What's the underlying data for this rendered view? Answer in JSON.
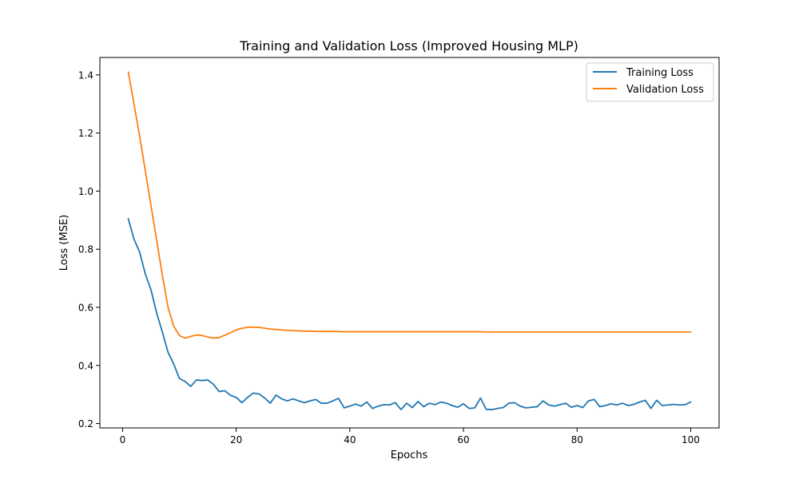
{
  "chart_data": {
    "type": "line",
    "title": "Training and Validation Loss (Improved Housing MLP)",
    "xlabel": "Epochs",
    "ylabel": "Loss (MSE)",
    "xlim": [
      -4,
      105
    ],
    "ylim": [
      0.185,
      1.46
    ],
    "xticks": [
      0,
      20,
      40,
      60,
      80,
      100
    ],
    "yticks": [
      0.2,
      0.4,
      0.6,
      0.8,
      1.0,
      1.2,
      1.4
    ],
    "ytick_labels": [
      "0.2",
      "0.4",
      "0.6",
      "0.8",
      "1.0",
      "1.2",
      "1.4"
    ],
    "grid": false,
    "legend": "top-right",
    "x": [
      1,
      2,
      3,
      4,
      5,
      6,
      7,
      8,
      9,
      10,
      11,
      12,
      13,
      14,
      15,
      16,
      17,
      18,
      19,
      20,
      21,
      22,
      23,
      24,
      25,
      26,
      27,
      28,
      29,
      30,
      31,
      32,
      33,
      34,
      35,
      36,
      37,
      38,
      39,
      40,
      41,
      42,
      43,
      44,
      45,
      46,
      47,
      48,
      49,
      50,
      51,
      52,
      53,
      54,
      55,
      56,
      57,
      58,
      59,
      60,
      61,
      62,
      63,
      64,
      65,
      66,
      67,
      68,
      69,
      70,
      71,
      72,
      73,
      74,
      75,
      76,
      77,
      78,
      79,
      80,
      81,
      82,
      83,
      84,
      85,
      86,
      87,
      88,
      89,
      90,
      91,
      92,
      93,
      94,
      95,
      96,
      97,
      98,
      99,
      100
    ],
    "series": [
      {
        "name": "Training Loss",
        "color": "#1f77b4",
        "values": [
          0.905,
          0.835,
          0.79,
          0.715,
          0.66,
          0.58,
          0.515,
          0.445,
          0.405,
          0.355,
          0.345,
          0.328,
          0.35,
          0.348,
          0.35,
          0.335,
          0.31,
          0.313,
          0.297,
          0.29,
          0.272,
          0.29,
          0.305,
          0.302,
          0.288,
          0.27,
          0.298,
          0.285,
          0.278,
          0.285,
          0.278,
          0.272,
          0.278,
          0.283,
          0.27,
          0.27,
          0.278,
          0.287,
          0.254,
          0.26,
          0.267,
          0.26,
          0.274,
          0.252,
          0.26,
          0.265,
          0.264,
          0.272,
          0.248,
          0.27,
          0.255,
          0.276,
          0.258,
          0.27,
          0.265,
          0.274,
          0.27,
          0.262,
          0.256,
          0.268,
          0.252,
          0.254,
          0.288,
          0.249,
          0.248,
          0.252,
          0.255,
          0.27,
          0.272,
          0.26,
          0.254,
          0.256,
          0.258,
          0.278,
          0.264,
          0.26,
          0.265,
          0.27,
          0.256,
          0.262,
          0.255,
          0.278,
          0.283,
          0.258,
          0.262,
          0.268,
          0.264,
          0.27,
          0.262,
          0.266,
          0.274,
          0.28,
          0.252,
          0.28,
          0.262,
          0.264,
          0.266,
          0.264,
          0.265,
          0.274
        ]
      },
      {
        "name": "Validation Loss",
        "color": "#ff7f0e",
        "values": [
          1.41,
          1.3,
          1.19,
          1.07,
          0.95,
          0.83,
          0.71,
          0.6,
          0.535,
          0.503,
          0.494,
          0.5,
          0.505,
          0.503,
          0.498,
          0.494,
          0.496,
          0.504,
          0.513,
          0.522,
          0.528,
          0.531,
          0.532,
          0.531,
          0.528,
          0.525,
          0.524,
          0.522,
          0.521,
          0.52,
          0.519,
          0.518,
          0.518,
          0.517,
          0.517,
          0.517,
          0.517,
          0.517,
          0.516,
          0.516,
          0.516,
          0.516,
          0.516,
          0.516,
          0.516,
          0.516,
          0.516,
          0.516,
          0.516,
          0.516,
          0.516,
          0.516,
          0.516,
          0.516,
          0.516,
          0.516,
          0.516,
          0.516,
          0.516,
          0.516,
          0.516,
          0.516,
          0.516,
          0.515,
          0.515,
          0.515,
          0.515,
          0.515,
          0.515,
          0.515,
          0.515,
          0.515,
          0.515,
          0.515,
          0.515,
          0.515,
          0.515,
          0.515,
          0.515,
          0.515,
          0.515,
          0.515,
          0.515,
          0.515,
          0.515,
          0.515,
          0.515,
          0.515,
          0.515,
          0.515,
          0.515,
          0.515,
          0.515,
          0.515,
          0.515,
          0.515,
          0.515,
          0.515,
          0.515,
          0.515
        ]
      }
    ]
  }
}
